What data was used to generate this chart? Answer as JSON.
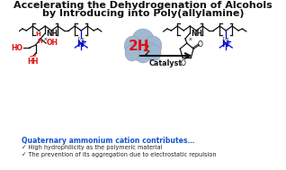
{
  "title_line1": "Accelerating the Dehydrogenation of Alcohols",
  "title_line2": "by Introducing into Poly(allylamine)",
  "h2_text": "2H",
  "h2_sub": "2",
  "catalyst_label": "Catalyst",
  "bottom_title": "Quaternary ammonium cation contributes…",
  "bullet1": "✓ High hydrophilicity as the polymeric material",
  "bullet2": "✓ The prevention of its aggregation due to electrostatic repulsion",
  "bg_color": "#ffffff",
  "title_color": "#111111",
  "h2_color": "#dd1111",
  "bottom_title_color": "#1555cc",
  "bullet_color": "#222222",
  "cloud_color": "#a0b8d0",
  "cloud_edge": "#8898b0",
  "arrow_color": "#111111",
  "sc": "#111111",
  "n_color": "#0000cc",
  "red_color": "#dd1111"
}
